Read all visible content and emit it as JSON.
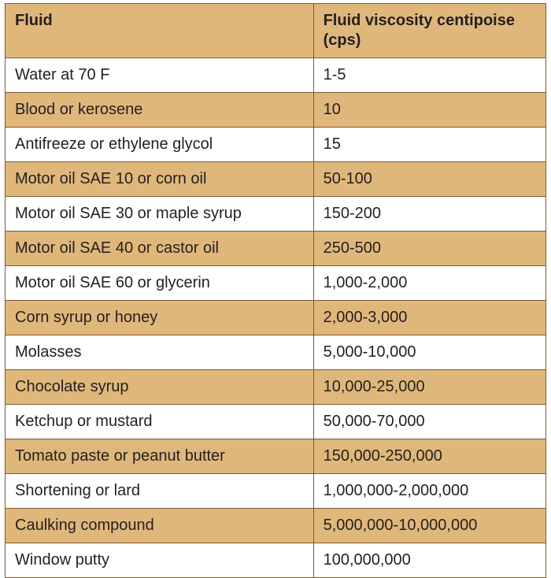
{
  "table": {
    "colors": {
      "header_bg": "#e0b77b",
      "stripe_bg": "#e0b77b",
      "plain_bg": "#ffffff",
      "border": "#7b5a2f",
      "text": "#231f20"
    },
    "columns": [
      {
        "label": "Fluid"
      },
      {
        "label": "Fluid viscosity centipoise (cps)"
      }
    ],
    "rows": [
      {
        "fluid": "Water at 70 F",
        "viscosity": "1-5"
      },
      {
        "fluid": "Blood or kerosene",
        "viscosity": "10"
      },
      {
        "fluid": "Antifreeze or ethylene glycol",
        "viscosity": "15"
      },
      {
        "fluid": "Motor oil SAE 10 or corn oil",
        "viscosity": "50-100"
      },
      {
        "fluid": "Motor oil SAE 30 or maple syrup",
        "viscosity": "150-200"
      },
      {
        "fluid": "Motor oil SAE 40 or castor oil",
        "viscosity": "250-500"
      },
      {
        "fluid": "Motor oil SAE 60 or glycerin",
        "viscosity": "1,000-2,000"
      },
      {
        "fluid": "Corn syrup or honey",
        "viscosity": "2,000-3,000"
      },
      {
        "fluid": "Molasses",
        "viscosity": "5,000-10,000"
      },
      {
        "fluid": "Chocolate syrup",
        "viscosity": "10,000-25,000"
      },
      {
        "fluid": "Ketchup or mustard",
        "viscosity": "50,000-70,000"
      },
      {
        "fluid": "Tomato paste or peanut butter",
        "viscosity": "150,000-250,000"
      },
      {
        "fluid": "Shortening or lard",
        "viscosity": "1,000,000-2,000,000"
      },
      {
        "fluid": "Caulking compound",
        "viscosity": "5,000,000-10,000,000"
      },
      {
        "fluid": "Window putty",
        "viscosity": "100,000,000"
      }
    ]
  }
}
